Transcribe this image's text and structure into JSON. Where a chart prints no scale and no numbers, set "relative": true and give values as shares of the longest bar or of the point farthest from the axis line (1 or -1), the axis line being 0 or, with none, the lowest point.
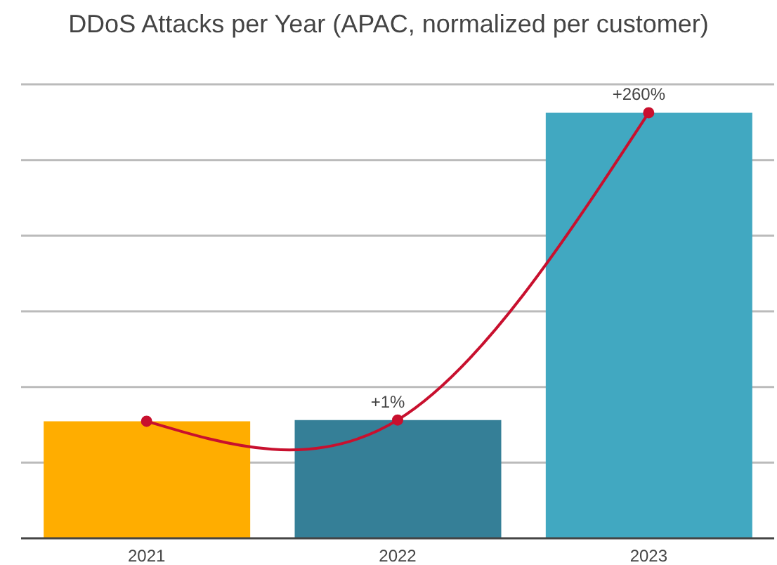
{
  "chart_data": {
    "type": "bar",
    "title": "DDoS Attacks per Year (APAC, normalized per customer)",
    "categories": [
      "2021",
      "2022",
      "2023"
    ],
    "relative": true,
    "grid": "y",
    "annotations": [
      {
        "text": "+1%",
        "x": "2022",
        "y": 0.278
      },
      {
        "text": "+260%",
        "x": "2023",
        "y": 1
      }
    ],
    "series": [
      {
        "colors": [
          "#ffad00",
          "#357f97",
          "#41a8c1"
        ],
        "values": [
          0.275,
          0.278,
          1
        ]
      },
      {
        "type": "line",
        "color": "#c8102e",
        "marker": "circle",
        "values": [
          0.275,
          0.278,
          1
        ]
      }
    ]
  }
}
